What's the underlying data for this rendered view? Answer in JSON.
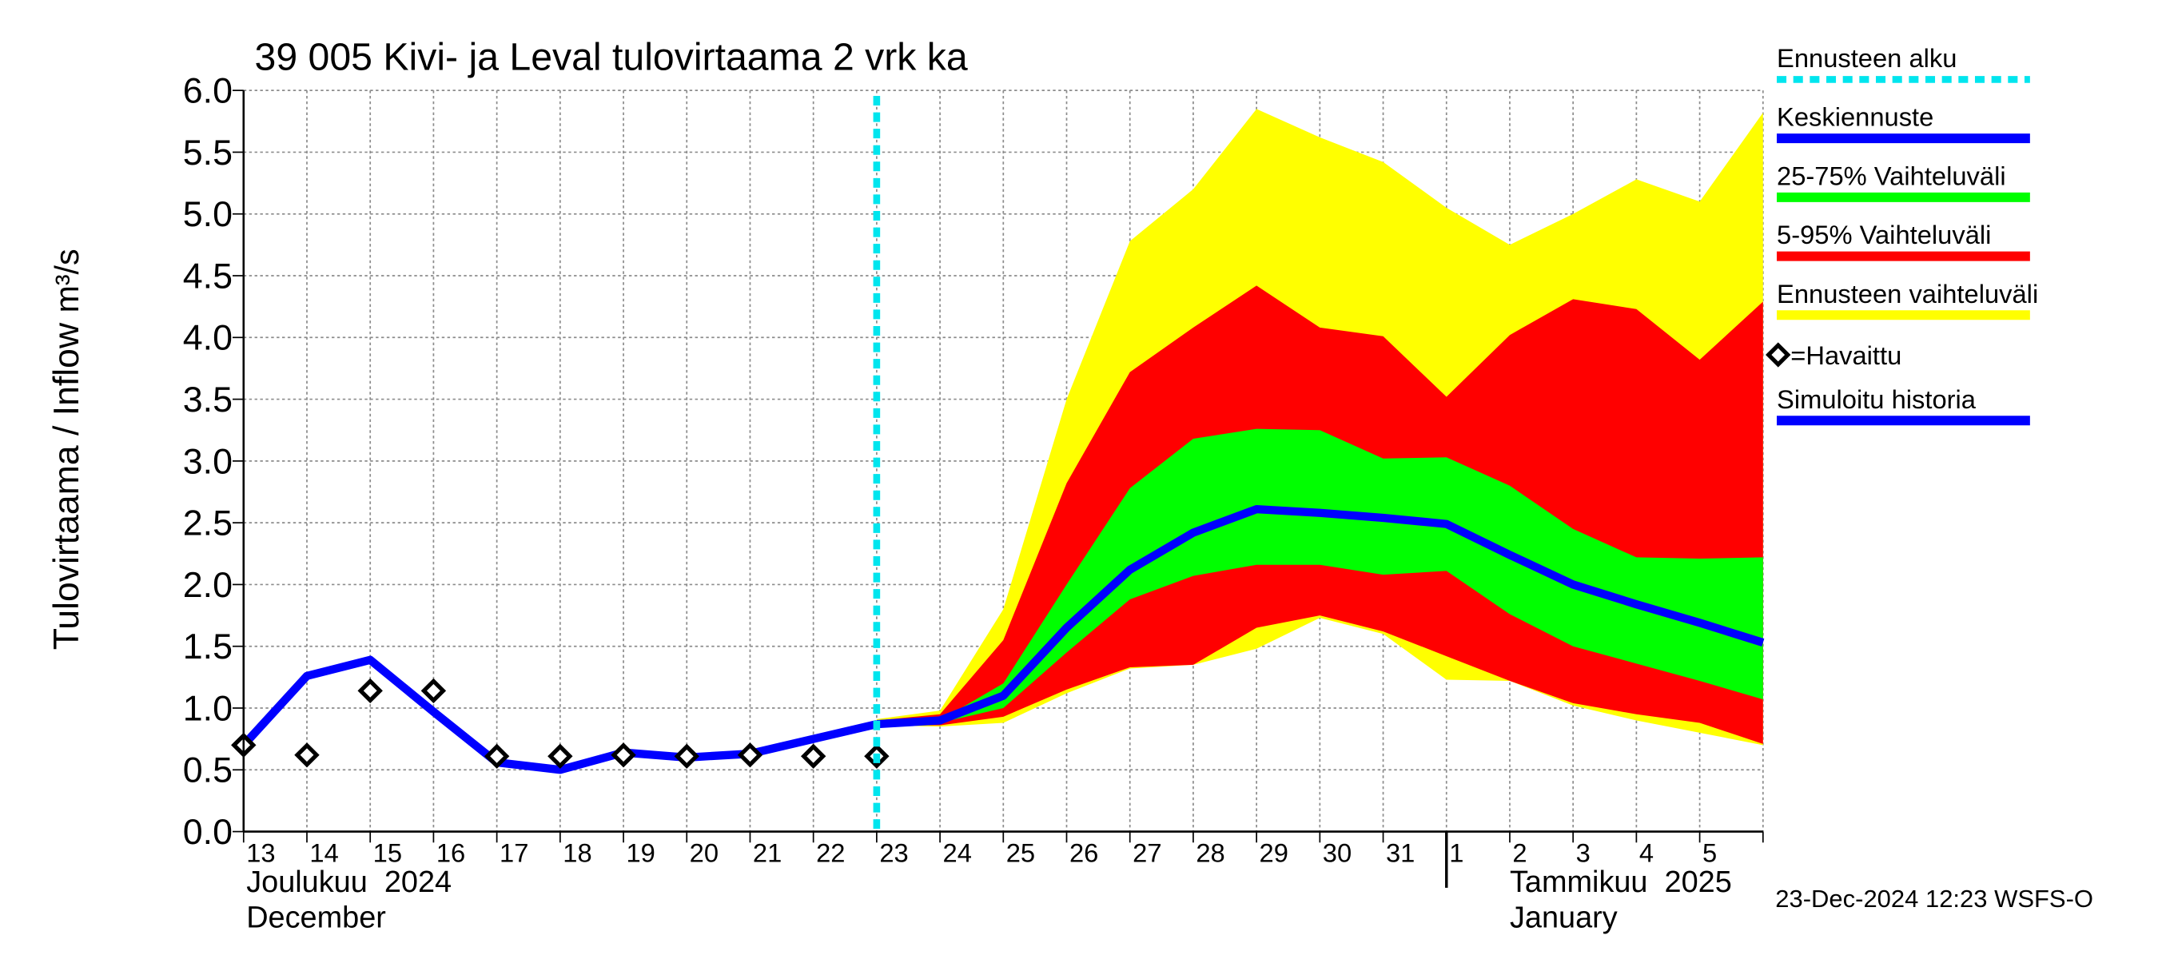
{
  "chart_data": {
    "type": "band",
    "title": "39 005 Kivi- ja Leval tulovirtaama 2 vrk ka",
    "ylabel": "Tulovirtaama / Inflow",
    "yunit": "m³/s",
    "categories": [
      "13",
      "14",
      "15",
      "16",
      "17",
      "18",
      "19",
      "20",
      "21",
      "22",
      "23",
      "24",
      "25",
      "26",
      "27",
      "28",
      "29",
      "30",
      "31",
      "1",
      "2",
      "3",
      "4",
      "5",
      null
    ],
    "months": [
      {
        "local": "Joulukuu  2024",
        "english": "December"
      },
      {
        "local": "Tammikuu  2025",
        "english": "January"
      }
    ],
    "ylim": [
      0,
      6
    ],
    "yticks": [
      {
        "value": 0,
        "label": "0.0"
      },
      0.5,
      {
        "value": 1,
        "label": "1.0"
      },
      1.5,
      {
        "value": 2,
        "label": "2.0"
      },
      2.5,
      {
        "value": 3,
        "label": "3.0"
      },
      3.5,
      {
        "value": 4,
        "label": "4.0"
      },
      4.5,
      {
        "value": 5,
        "label": "5.0"
      },
      5.5,
      {
        "value": 6,
        "label": "6.0"
      }
    ],
    "grid": true,
    "forecast_start": {
      "name": "Ennusteen alku",
      "color": "#00e5ee",
      "category": "23"
    },
    "series": [
      {
        "name": "Keskiennuste",
        "type": "line",
        "color": "#0000ff",
        "values": [
          null,
          null,
          null,
          null,
          null,
          null,
          null,
          null,
          null,
          null,
          0.87,
          0.9,
          1.1,
          1.65,
          2.12,
          2.42,
          2.61,
          2.58,
          2.54,
          2.49,
          2.24,
          2.0,
          1.84,
          1.69,
          1.53
        ]
      },
      {
        "name": "25-75% Vaihteluväli",
        "type": "band",
        "color": "#00ff00",
        "upper": [
          null,
          null,
          null,
          null,
          null,
          null,
          null,
          null,
          null,
          null,
          0.88,
          0.9,
          1.2,
          2.0,
          2.78,
          3.18,
          3.26,
          3.25,
          3.02,
          3.03,
          2.8,
          2.45,
          2.22,
          2.21,
          2.22
        ],
        "lower": [
          null,
          null,
          null,
          null,
          null,
          null,
          null,
          null,
          null,
          null,
          0.87,
          0.88,
          1.0,
          1.45,
          1.88,
          2.07,
          2.16,
          2.16,
          2.08,
          2.11,
          1.76,
          1.5,
          1.36,
          1.22,
          1.07
        ]
      },
      {
        "name": "5-95% Vaihteluväli",
        "type": "band",
        "color": "#ff0000",
        "upper": [
          null,
          null,
          null,
          null,
          null,
          null,
          null,
          null,
          null,
          null,
          0.9,
          0.95,
          1.55,
          2.82,
          3.72,
          4.08,
          4.42,
          4.08,
          4.01,
          3.52,
          4.02,
          4.31,
          4.23,
          3.82,
          4.29
        ],
        "lower": [
          null,
          null,
          null,
          null,
          null,
          null,
          null,
          null,
          null,
          null,
          0.86,
          0.86,
          0.93,
          1.15,
          1.33,
          1.35,
          1.65,
          1.75,
          1.62,
          1.42,
          1.22,
          1.04,
          0.95,
          0.88,
          0.71
        ]
      },
      {
        "name": "Ennusteen vaihteluväli",
        "type": "band",
        "color": "#ffff00",
        "upper": [
          null,
          null,
          null,
          null,
          null,
          null,
          null,
          null,
          null,
          null,
          0.91,
          0.98,
          1.8,
          3.5,
          4.78,
          5.2,
          5.85,
          5.62,
          5.42,
          5.05,
          4.75,
          5.0,
          5.28,
          5.1,
          5.82
        ],
        "lower": [
          null,
          null,
          null,
          null,
          null,
          null,
          null,
          null,
          null,
          null,
          0.86,
          0.85,
          0.88,
          1.12,
          1.32,
          1.35,
          1.48,
          1.73,
          1.6,
          1.23,
          1.22,
          1.02,
          0.9,
          0.8,
          0.7
        ]
      },
      {
        "name": "=Havaittu",
        "type": "marker",
        "color": "#000000",
        "values": [
          0.7,
          0.62,
          1.14,
          1.14,
          0.61,
          0.61,
          0.62,
          0.61,
          0.62,
          0.61,
          0.61,
          null,
          null,
          null,
          null,
          null,
          null,
          null,
          null,
          null,
          null,
          null,
          null,
          null,
          null
        ]
      },
      {
        "name": "Simuloitu historia",
        "type": "line",
        "color": "#0000ff",
        "values": [
          0.7,
          1.26,
          1.39,
          0.97,
          0.56,
          0.5,
          0.64,
          0.6,
          0.63,
          0.75,
          0.87,
          null,
          null,
          null,
          null,
          null,
          null,
          null,
          null,
          null,
          null,
          null,
          null,
          null,
          null
        ]
      }
    ],
    "footer": "23-Dec-2024 12:23 WSFS-O"
  }
}
